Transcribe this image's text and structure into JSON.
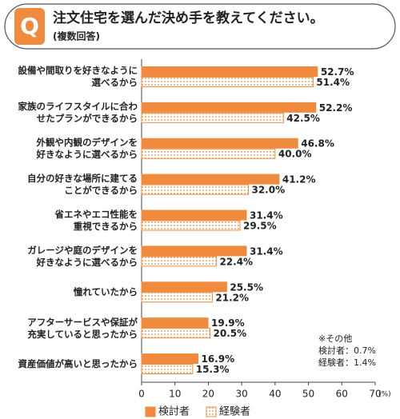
{
  "chart_data": {
    "type": "hbar",
    "badge": "Q",
    "title": "注文住宅を選んだ決め手を教えてください。",
    "subtitle": "(複数回答)",
    "categories": [
      "設備や間取りを好きなように\n選べるから",
      "家族のライフスタイルに合わ\nせたプランができるから",
      "外観や内観のデザインを\n好きなように選べるから",
      "自分の好きな場所に建てる\nことができるから",
      "省エネやエコ性能を\n重視できるから",
      "ガレージや庭のデザインを\n好きなように選べるから",
      "憧れていたから",
      "アフターサービスや保証が\n充実していると思ったから",
      "資産価値が高いと思ったから"
    ],
    "series": [
      {
        "name": "検討者",
        "color": "#f08a3c",
        "fill": "solid",
        "values": [
          52.7,
          52.2,
          46.8,
          41.2,
          31.4,
          31.4,
          25.5,
          19.9,
          16.9
        ],
        "value_labels": [
          "52.7%",
          "52.2%",
          "46.8%",
          "41.2%",
          "31.4%",
          "31.4%",
          "25.5%",
          "19.9%",
          "16.9%"
        ]
      },
      {
        "name": "経験者",
        "color": "#f08a3c",
        "fill": "dots",
        "values": [
          51.4,
          42.5,
          40.0,
          32.0,
          29.5,
          22.4,
          21.2,
          20.5,
          15.3
        ],
        "value_labels": [
          "51.4%",
          "42.5%",
          "40.0%",
          "32.0%",
          "29.5%",
          "22.4%",
          "21.2%",
          "20.5%",
          "15.3%"
        ]
      }
    ],
    "xlim": [
      0,
      70
    ],
    "xticks": [
      0,
      10,
      20,
      30,
      40,
      50,
      60,
      70
    ],
    "xlabel": "(%)",
    "annotation": "※その他\n検討者：0.7%\n経験者：1.4%"
  }
}
